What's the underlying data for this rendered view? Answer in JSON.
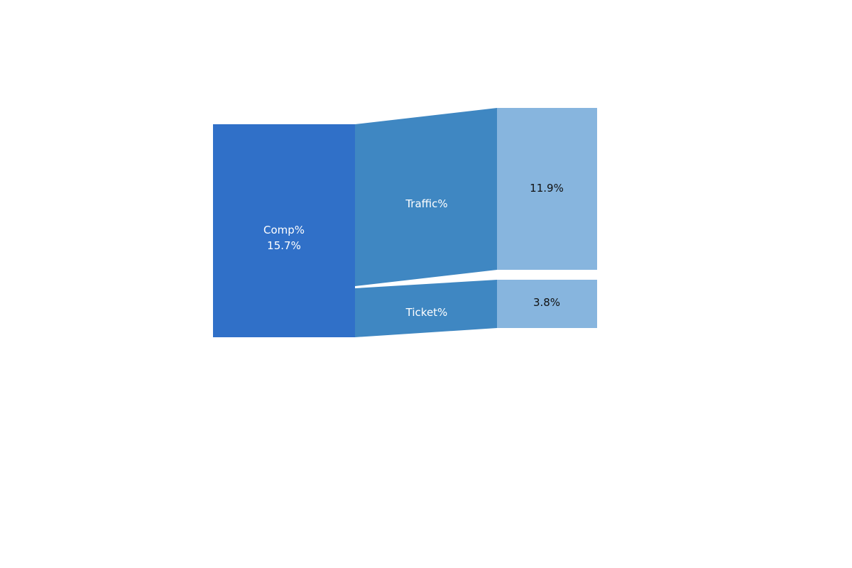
{
  "colors": {
    "background": "#ffffff",
    "root_node": "#3070c8",
    "flow": "#3f87c2",
    "value_node": "#87b5de",
    "text_light": "#ffffff",
    "text_dark": "#111111"
  },
  "root": {
    "label": "Comp%",
    "value_label": "15.7%"
  },
  "flows": [
    {
      "label": "Traffic%",
      "value_label": "11.9%"
    },
    {
      "label": "Ticket%",
      "value_label": "3.8%"
    }
  ]
}
